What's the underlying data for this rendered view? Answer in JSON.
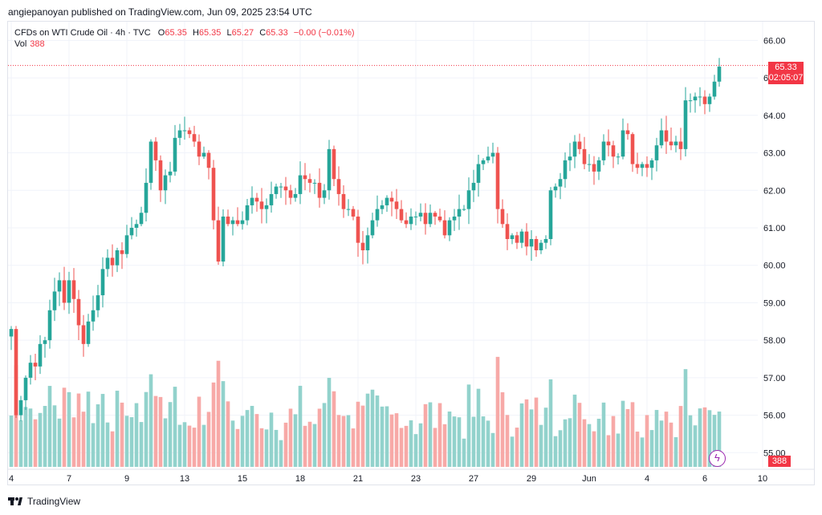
{
  "header": {
    "publisher_line": "angiepanoyan published on TradingView.com, Jun 09, 2025 23:54 UTC"
  },
  "legend": {
    "symbol": "CFDs on WTI Crude Oil · 4h · TVC",
    "open_label": "O",
    "open": "65.35",
    "high_label": "H",
    "high": "65.35",
    "low_label": "L",
    "low": "65.27",
    "close_label": "C",
    "close": "65.33",
    "change": "−0.00 (−0.01%)",
    "vol_label": "Vol",
    "vol": "388"
  },
  "price_tag": {
    "price": "65.33",
    "countdown": "02:05:07"
  },
  "volume_tag": "388",
  "footer": {
    "brand": "TradingView"
  },
  "colors": {
    "up": "#26a69a",
    "down": "#ef5350",
    "vol_up": "#92d2cc",
    "vol_down": "#f7a9a7",
    "price_line": "#f23645"
  },
  "chart_data": {
    "type": "candlestick",
    "title": "CFDs on WTI Crude Oil · 4h · TVC",
    "xlabel": "",
    "ylabel": "",
    "ylim": [
      54.6,
      66.5
    ],
    "y_ticks": [
      "66.00",
      "65.00",
      "64.00",
      "63.00",
      "62.00",
      "61.00",
      "60.00",
      "59.00",
      "58.00",
      "57.00",
      "56.00",
      "55.00"
    ],
    "x_ticks": [
      {
        "label": "4",
        "index": 0
      },
      {
        "label": "7",
        "index": 12
      },
      {
        "label": "9",
        "index": 24
      },
      {
        "label": "13",
        "index": 36
      },
      {
        "label": "15",
        "index": 48
      },
      {
        "label": "18",
        "index": 60
      },
      {
        "label": "21",
        "index": 72
      },
      {
        "label": "23",
        "index": 84
      },
      {
        "label": "27",
        "index": 96
      },
      {
        "label": "29",
        "index": 108
      },
      {
        "label": "Jun",
        "index": 120
      },
      {
        "label": "4",
        "index": 132
      },
      {
        "label": "6",
        "index": 144
      },
      {
        "label": "10",
        "index": 156
      }
    ],
    "current_price": 65.33,
    "close": [
      58.3,
      56.0,
      56.4,
      57.0,
      57.4,
      57.3,
      57.9,
      58.0,
      58.8,
      59.3,
      59.6,
      59.0,
      59.6,
      59.1,
      58.4,
      57.9,
      58.5,
      58.8,
      59.2,
      59.9,
      60.2,
      60.0,
      60.4,
      60.3,
      60.8,
      61.0,
      61.1,
      61.4,
      62.2,
      63.3,
      62.8,
      62.0,
      62.4,
      62.5,
      63.4,
      63.6,
      63.6,
      63.5,
      63.3,
      62.9,
      63.0,
      62.6,
      61.2,
      60.1,
      61.3,
      61.1,
      61.2,
      61.1,
      61.2,
      61.6,
      61.8,
      61.7,
      61.5,
      61.6,
      61.9,
      62.1,
      62.1,
      62.0,
      61.8,
      61.9,
      62.4,
      62.3,
      62.2,
      62.2,
      61.8,
      62.0,
      63.1,
      62.3,
      61.9,
      61.5,
      61.5,
      61.3,
      60.6,
      60.4,
      60.8,
      61.2,
      61.5,
      61.6,
      61.8,
      61.7,
      61.5,
      61.2,
      61.1,
      61.3,
      61.3,
      61.4,
      61.1,
      61.4,
      61.3,
      61.2,
      60.8,
      61.2,
      61.3,
      61.5,
      61.5,
      62.0,
      62.2,
      62.7,
      62.8,
      62.9,
      63.0,
      61.5,
      61.1,
      60.7,
      60.8,
      60.6,
      60.9,
      60.5,
      60.7,
      60.4,
      60.6,
      60.7,
      62.0,
      62.1,
      62.3,
      62.8,
      62.9,
      63.3,
      63.1,
      62.7,
      62.7,
      62.5,
      62.8,
      63.3,
      63.2,
      62.9,
      62.9,
      63.6,
      63.5,
      62.7,
      62.6,
      62.7,
      62.6,
      62.8,
      63.2,
      63.6,
      63.3,
      63.2,
      63.3,
      63.1,
      64.4,
      64.4,
      64.5,
      64.5,
      64.3,
      64.5,
      64.9,
      65.3
    ],
    "ohlc_note": "approximate 4h closes read from chart; open = previous close",
    "volume_scale": [
      0,
      1
    ]
  }
}
